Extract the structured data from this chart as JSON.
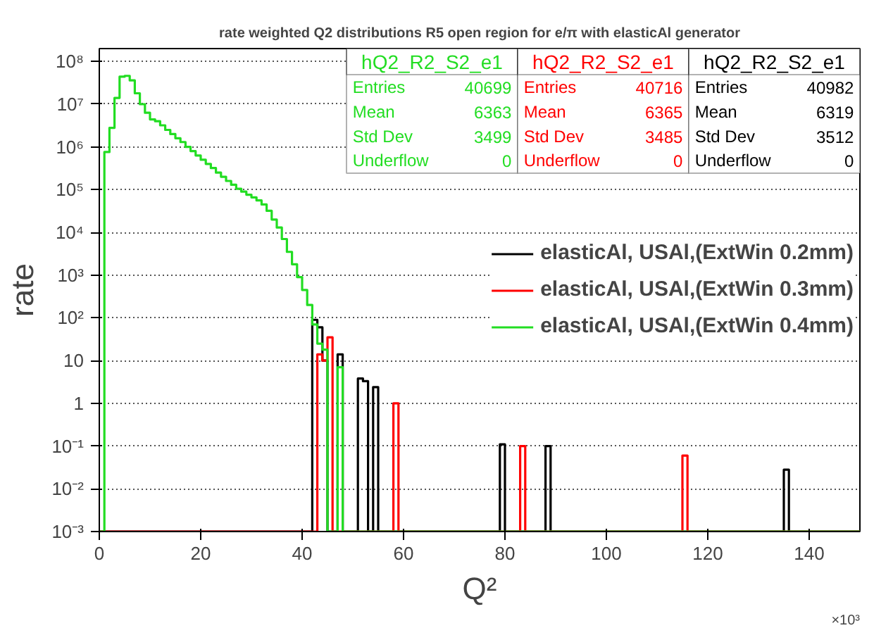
{
  "chart_data": {
    "type": "histogram",
    "title": "rate weighted Q2 distributions R5 open region for e/π with elasticAl generator",
    "xlabel": "Q²",
    "ylabel": "rate",
    "bins": [
      0,
      1,
      2,
      3,
      4,
      5,
      6,
      7,
      8,
      9,
      10,
      11,
      12,
      13,
      14,
      15,
      16,
      17,
      18,
      19,
      20,
      21,
      22,
      23,
      24,
      25,
      26,
      27,
      28,
      29,
      30,
      31,
      32,
      33,
      34,
      35,
      36,
      37,
      38,
      39,
      40,
      41,
      42,
      43,
      44,
      45,
      46,
      47,
      48,
      49,
      50,
      51,
      52,
      53,
      54,
      55,
      56,
      57,
      58,
      59,
      60,
      61,
      62,
      63,
      64,
      65,
      66,
      67,
      68,
      69,
      70,
      71,
      72,
      73,
      74,
      75,
      76,
      77,
      78,
      79,
      80,
      81,
      82,
      83,
      84,
      85,
      86,
      87,
      88,
      89,
      90,
      91,
      92,
      93,
      94,
      95,
      96,
      97,
      98,
      99,
      100,
      101,
      102,
      103,
      104,
      105,
      106,
      107,
      108,
      109,
      110,
      111,
      112,
      113,
      114,
      115,
      116,
      117,
      118,
      119,
      120,
      121,
      122,
      123,
      124,
      125,
      126,
      127,
      128,
      129,
      130,
      131,
      132,
      133,
      134,
      135,
      136,
      137,
      138,
      139,
      140,
      141,
      142,
      143,
      144,
      145,
      146,
      147,
      148,
      149,
      150
    ],
    "series": [
      {
        "name": "elasticAl, USAl,(ExtWin 0.2mm)",
        "color": "#000000",
        "values": [
          null,
          null,
          null,
          null,
          null,
          null,
          null,
          null,
          null,
          null,
          null,
          null,
          null,
          null,
          null,
          null,
          null,
          null,
          null,
          null,
          null,
          null,
          null,
          null,
          null,
          null,
          null,
          null,
          null,
          null,
          null,
          null,
          null,
          null,
          null,
          null,
          null,
          null,
          null,
          null,
          null,
          null,
          90,
          60,
          10,
          null,
          null,
          14,
          null,
          null,
          null,
          3.8,
          3.3,
          null,
          2.4,
          null,
          null,
          null,
          null,
          null,
          null,
          null,
          null,
          null,
          null,
          null,
          null,
          null,
          null,
          null,
          null,
          null,
          null,
          null,
          null,
          null,
          null,
          null,
          null,
          0.11,
          null,
          null,
          null,
          null,
          null,
          null,
          null,
          null,
          0.1,
          null,
          null,
          null,
          null,
          null,
          null,
          null,
          null,
          null,
          null,
          null,
          null,
          null,
          null,
          null,
          null,
          null,
          null,
          null,
          null,
          null,
          null,
          null,
          null,
          null,
          null,
          null,
          null,
          null,
          null,
          null,
          null,
          null,
          null,
          null,
          null,
          null,
          null,
          null,
          null,
          null,
          null,
          null,
          null,
          null,
          null,
          0.028,
          null,
          null,
          null,
          null,
          null,
          null,
          null,
          null,
          null,
          null,
          null,
          null,
          null,
          null
        ]
      },
      {
        "name": "elasticAl, USAl,(ExtWin 0.3mm)",
        "color": "#ff0000",
        "values": [
          null,
          null,
          null,
          null,
          null,
          null,
          null,
          null,
          null,
          null,
          null,
          null,
          null,
          null,
          null,
          null,
          null,
          null,
          null,
          null,
          null,
          null,
          null,
          null,
          null,
          null,
          null,
          null,
          null,
          null,
          null,
          null,
          null,
          null,
          null,
          null,
          null,
          null,
          null,
          null,
          null,
          null,
          null,
          14,
          10,
          35,
          null,
          null,
          null,
          null,
          null,
          null,
          null,
          null,
          null,
          null,
          null,
          null,
          1,
          null,
          null,
          null,
          null,
          null,
          null,
          null,
          null,
          null,
          null,
          null,
          null,
          null,
          null,
          null,
          null,
          null,
          null,
          null,
          null,
          null,
          null,
          null,
          null,
          0.1,
          null,
          null,
          null,
          null,
          null,
          null,
          null,
          null,
          null,
          null,
          null,
          null,
          null,
          null,
          null,
          null,
          null,
          null,
          null,
          null,
          null,
          null,
          null,
          null,
          null,
          null,
          null,
          null,
          null,
          null,
          null,
          0.06,
          null,
          null,
          null,
          null,
          null,
          null,
          null,
          null,
          null,
          null,
          null,
          null,
          null,
          null,
          null,
          null,
          null,
          null,
          null,
          null,
          null,
          null,
          null,
          null,
          null,
          null,
          null,
          null,
          null,
          null,
          null,
          null,
          null,
          null
        ]
      },
      {
        "name": "elasticAl, USAl,(ExtWin 0.4mm)",
        "color": "#22dd22",
        "values": [
          null,
          760000.0,
          2800000.0,
          14000000.0,
          44000000.0,
          46000000.0,
          36000000.0,
          18000000.0,
          10000000.0,
          6300000.0,
          4400000.0,
          4000000.0,
          3200000.0,
          2500000.0,
          2000000.0,
          1600000.0,
          1300000.0,
          1000000.0,
          800000.0,
          630000.0,
          500000.0,
          400000.0,
          320000.0,
          250000.0,
          200000.0,
          160000.0,
          130000.0,
          105000.0,
          90000.0,
          76000.0,
          66000.0,
          56000.0,
          45000.0,
          32000.0,
          20000.0,
          13000.0,
          7000,
          3500,
          1800,
          900,
          450,
          200,
          70,
          25,
          18,
          null,
          null,
          7,
          null,
          null,
          null,
          null,
          null,
          null,
          null,
          null,
          null,
          null,
          null,
          null,
          null,
          null,
          null,
          null,
          null,
          null,
          null,
          null,
          null,
          null,
          null,
          null,
          null,
          null,
          null,
          null,
          null,
          null,
          null,
          null,
          null,
          null,
          null,
          null,
          null,
          null,
          null,
          null,
          null,
          null,
          null,
          null,
          null,
          null,
          null,
          null,
          null,
          null,
          null,
          null,
          null,
          null,
          null,
          null,
          null,
          null,
          null,
          null,
          null,
          null,
          null,
          null,
          null,
          null,
          null,
          null,
          null,
          null,
          null,
          null,
          null,
          null,
          null,
          null,
          null,
          null,
          null,
          null,
          null,
          null,
          null,
          null,
          null,
          null,
          null,
          null,
          null,
          null,
          null,
          null,
          null,
          null,
          null,
          null,
          null,
          null,
          null,
          null,
          null,
          null
        ]
      }
    ],
    "xlim": [
      0,
      150
    ],
    "xticks": [
      0,
      20,
      40,
      60,
      80,
      100,
      120,
      140
    ],
    "ylim": [
      0.001,
      200000000.0
    ],
    "yticks": [
      {
        "value": 100000000.0,
        "label": "10⁸"
      },
      {
        "value": 10000000.0,
        "label": "10⁷"
      },
      {
        "value": 1000000.0,
        "label": "10⁶"
      },
      {
        "value": 100000.0,
        "label": "10⁵"
      },
      {
        "value": 10000.0,
        "label": "10⁴"
      },
      {
        "value": 1000,
        "label": "10³"
      },
      {
        "value": 100,
        "label": "10²"
      },
      {
        "value": 10,
        "label": "10"
      },
      {
        "value": 1,
        "label": "1"
      },
      {
        "value": 0.1,
        "label": "10⁻¹"
      },
      {
        "value": 0.01,
        "label": "10⁻²"
      },
      {
        "value": 0.001,
        "label": "10⁻³"
      }
    ],
    "log": "y",
    "grid": "y",
    "legend": "right",
    "annotations": [
      "hQ2_R2_S2_e1",
      "Entries",
      "40699",
      "Mean",
      "6363",
      "Std Dev",
      "3499",
      "Underflow",
      "0",
      "hQ2_R2_S2_e1",
      "Entries",
      "40716",
      "Mean",
      "6365",
      "Std Dev",
      "3485",
      "Underflow",
      "0",
      "hQ2_R2_S2_e1",
      "Entries",
      "40982",
      "Mean",
      "6319",
      "Std Dev",
      "3512",
      "Underflow",
      "0",
      "×10³"
    ]
  }
}
